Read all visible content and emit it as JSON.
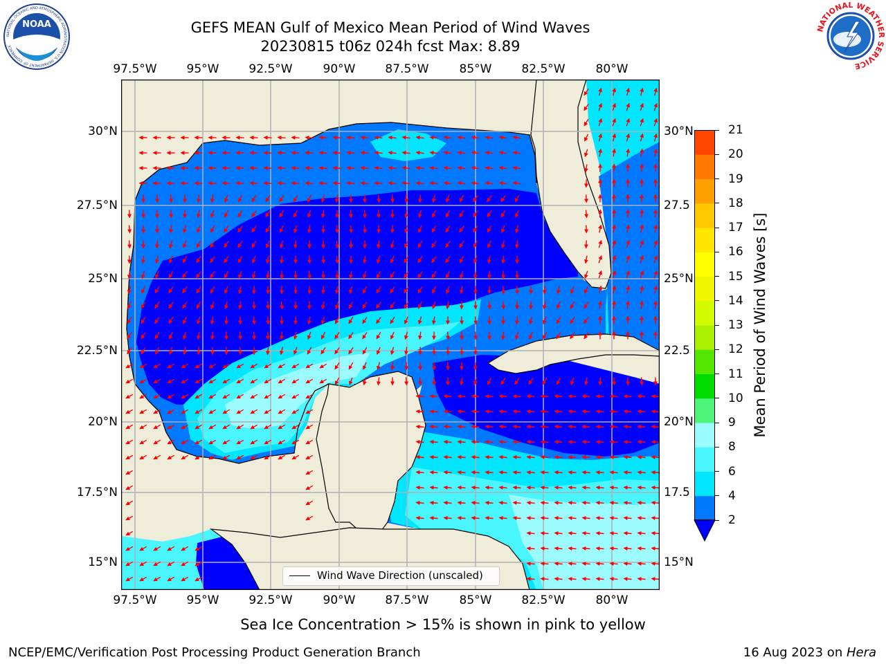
{
  "title_line1": "GEFS MEAN Gulf of Mexico Mean Period of Wind Waves",
  "title_line2": "20230815 t06z 024h fcst   Max: 8.89",
  "lon_ticks": [
    "97.5°W",
    "95°W",
    "92.5°W",
    "90°W",
    "87.5°W",
    "85°W",
    "82.5°W",
    "80°W"
  ],
  "lat_ticks": [
    "30°N",
    "27.5°N",
    "25°N",
    "22.5°N",
    "20°N",
    "17.5°N",
    "15°N"
  ],
  "lat_ticks_right": [
    "30°N",
    "27.5",
    "25°N",
    "22.5",
    "20°N",
    "17.5",
    "15°N"
  ],
  "legend_label": "Wind Wave Direction (unscaled)",
  "colorbar": {
    "label": "Mean Period of Wind Waves [s]",
    "ticks": [
      "2",
      "4",
      "6",
      "8",
      "9",
      "10",
      "11",
      "12",
      "13",
      "14",
      "15",
      "16",
      "17",
      "18",
      "19",
      "20",
      "21"
    ],
    "colors": [
      "#0078ff",
      "#00e6ff",
      "#49f5ff",
      "#9bfbff",
      "#4cf57a",
      "#00dc00",
      "#52e600",
      "#aaf000",
      "#d2fa00",
      "#f0f500",
      "#ffff00",
      "#ffe600",
      "#ffc800",
      "#ffa000",
      "#ff7800",
      "#ff4600",
      "#ff0000"
    ],
    "under_color": "#0000ff"
  },
  "ice_note": "Sea Ice Concentration > 15% is shown in pink to yellow",
  "footer_left": "NCEP/EMC/Verification Post Processing Product Generation Branch",
  "footer_date": "16 Aug 2023 on ",
  "footer_machine": "Hera",
  "logo_left": {
    "name": "NOAA",
    "ring_text": "NATIONAL OCEANIC AND ATMOSPHERIC ADMINISTRATION  U.S. DEPARTMENT OF COMMERCE"
  },
  "logo_right": {
    "ring_text": "NATIONAL WEATHER SERVICE"
  },
  "colors": {
    "land": "#efecd9",
    "arrow": "#ff0000",
    "grid": "#b0b0b0"
  }
}
